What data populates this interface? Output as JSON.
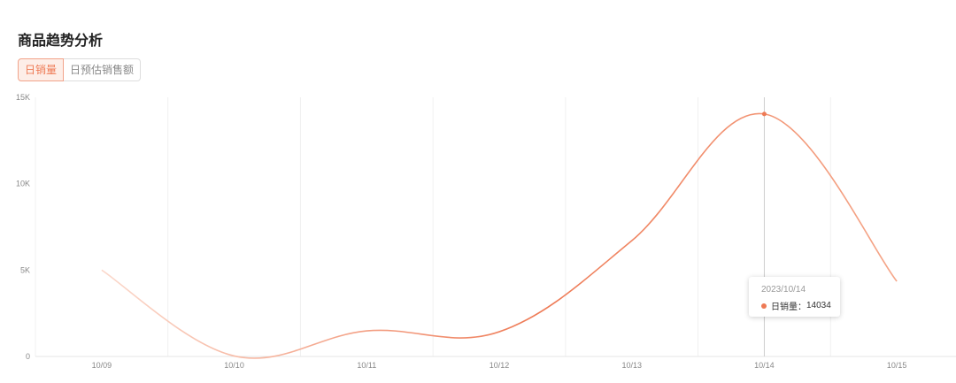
{
  "title": "商品趋势分析",
  "tabs": [
    {
      "label": "日销量",
      "active": true
    },
    {
      "label": "日预估销售额",
      "active": false
    }
  ],
  "chart_data": {
    "type": "line",
    "categories": [
      "10/09",
      "10/10",
      "10/11",
      "10/12",
      "10/13",
      "10/14",
      "10/15"
    ],
    "series": [
      {
        "name": "日销量",
        "values": [
          5000,
          30,
          1480,
          1430,
          6700,
          14034,
          4350
        ]
      }
    ],
    "ylim": [
      0,
      15000
    ],
    "yticks": [
      "0",
      "5K",
      "10K",
      "15K"
    ],
    "ytick_values": [
      0,
      5000,
      10000,
      15000
    ],
    "grid": "vertical",
    "color": "#ee7a55"
  },
  "tooltip": {
    "date": "2023/10/14",
    "label": "日销量：",
    "value": "14034"
  }
}
